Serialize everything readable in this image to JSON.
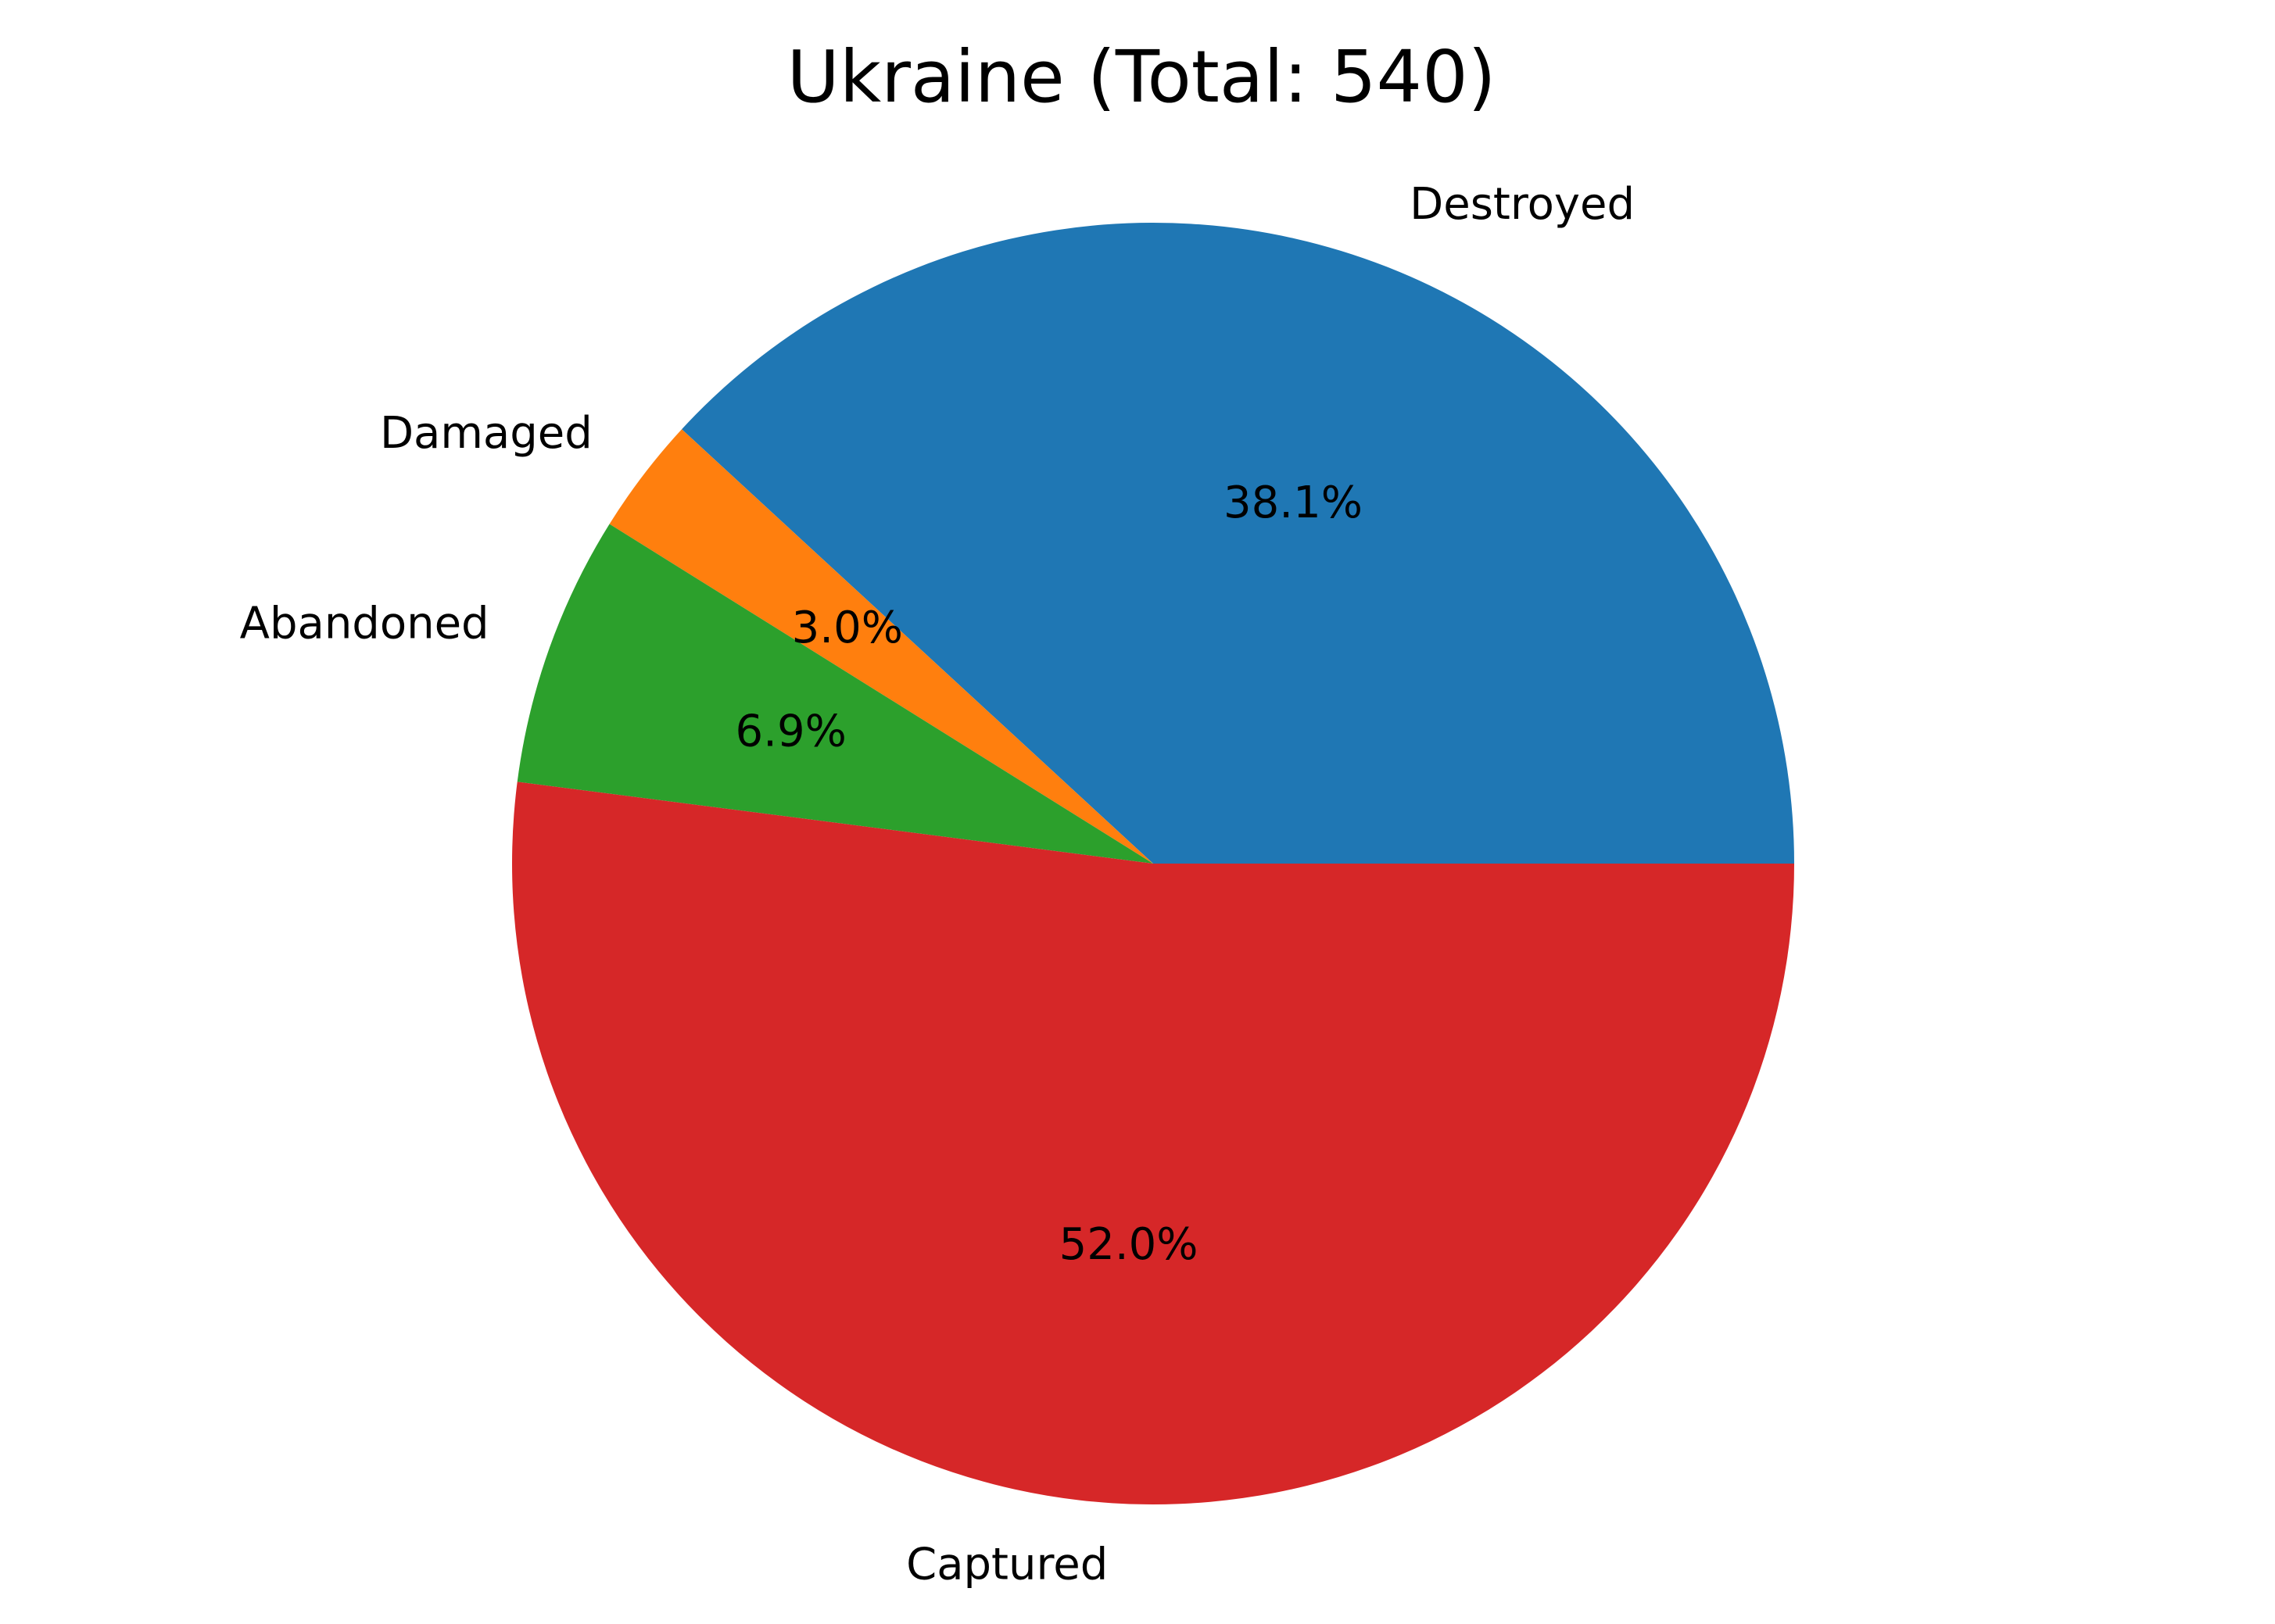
{
  "chart_data": {
    "type": "pie",
    "title": "Ukraine (Total: 540)",
    "start_angle_deg": 0,
    "direction": "counterclockwise",
    "slices": [
      {
        "label": "Destroyed",
        "value": 206,
        "percent_label": "38.1%",
        "color": "#1f77b4"
      },
      {
        "label": "Damaged",
        "value": 16,
        "percent_label": "3.0%",
        "color": "#ff7f0e"
      },
      {
        "label": "Abandoned",
        "value": 37,
        "percent_label": "6.9%",
        "color": "#2ca02c"
      },
      {
        "label": "Captured",
        "value": 281,
        "percent_label": "52.0%",
        "color": "#d62728"
      }
    ]
  }
}
